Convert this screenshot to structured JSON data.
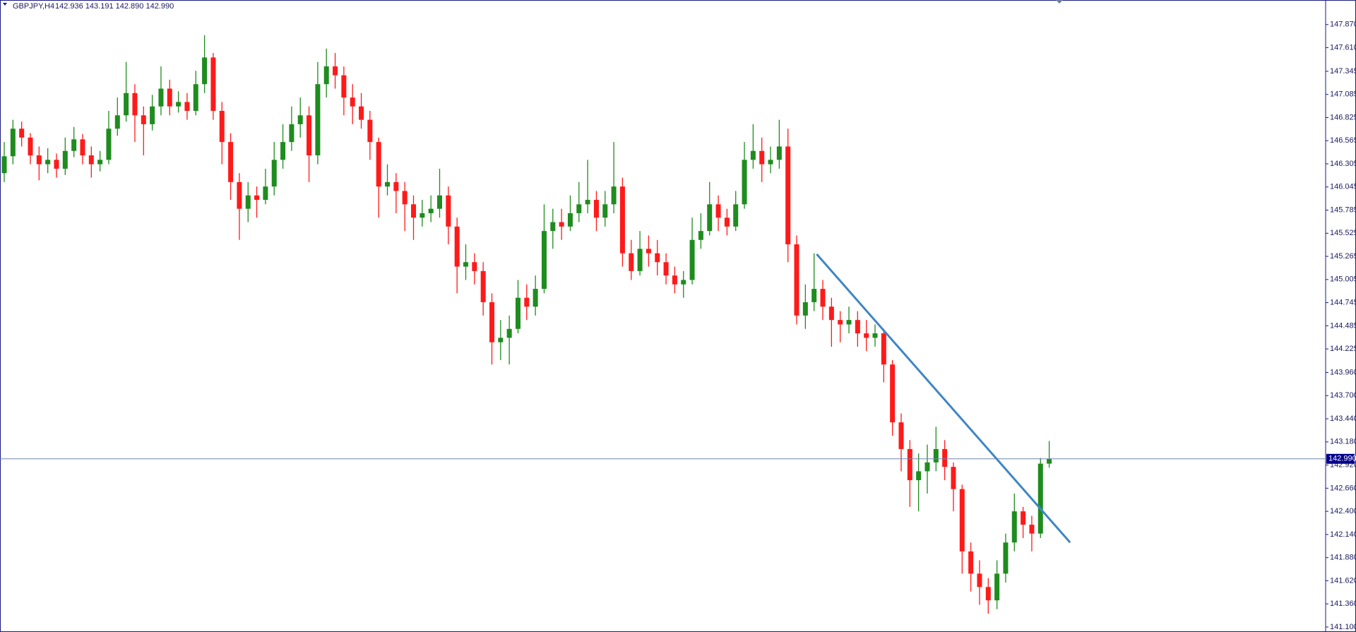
{
  "chart_data": {
    "type": "candlestick",
    "symbol": "GBPJPY,H4",
    "ohlc_label": "142.936 143.191 142.890 142.990",
    "up_color": "#1e8c1e",
    "down_color": "#ff1a1a",
    "grid": false,
    "ylim": [
      141.06,
      148.13
    ],
    "yticks": [
      {
        "value": 147.87,
        "label": "147.870"
      },
      {
        "value": 147.61,
        "label": "147.610"
      },
      {
        "value": 147.345,
        "label": "147.345"
      },
      {
        "value": 147.085,
        "label": "147.085"
      },
      {
        "value": 146.825,
        "label": "146.825"
      },
      {
        "value": 146.565,
        "label": "146.565"
      },
      {
        "value": 146.305,
        "label": "146.305"
      },
      {
        "value": 146.045,
        "label": "146.045"
      },
      {
        "value": 145.785,
        "label": "145.785"
      },
      {
        "value": 145.525,
        "label": "145.525"
      },
      {
        "value": 145.265,
        "label": "145.265"
      },
      {
        "value": 145.005,
        "label": "145.005"
      },
      {
        "value": 144.745,
        "label": "144.745"
      },
      {
        "value": 144.485,
        "label": "144.485"
      },
      {
        "value": 144.225,
        "label": "144.225"
      },
      {
        "value": 143.96,
        "label": "143.960"
      },
      {
        "value": 143.7,
        "label": "143.700"
      },
      {
        "value": 143.44,
        "label": "143.440"
      },
      {
        "value": 143.18,
        "label": "143.180"
      },
      {
        "value": 142.92,
        "label": "142.920"
      },
      {
        "value": 142.66,
        "label": "142.660"
      },
      {
        "value": 142.4,
        "label": "142.400"
      },
      {
        "value": 142.14,
        "label": "142.140"
      },
      {
        "value": 141.88,
        "label": "141.880"
      },
      {
        "value": 141.62,
        "label": "141.620"
      },
      {
        "value": 141.36,
        "label": "141.360"
      },
      {
        "value": 141.1,
        "label": "141.100"
      }
    ],
    "last_price": {
      "value": 142.99,
      "label": "142.990",
      "color": "#00008b"
    },
    "trendline": {
      "x": [
        93.3,
        122.4
      ],
      "y": [
        145.29,
        142.05
      ],
      "color": "#3f86c4"
    },
    "candles": [
      [
        146.2,
        146.55,
        146.1,
        146.39
      ],
      [
        146.39,
        146.8,
        146.3,
        146.7
      ],
      [
        146.7,
        146.78,
        146.5,
        146.6
      ],
      [
        146.6,
        146.65,
        146.3,
        146.4
      ],
      [
        146.4,
        146.5,
        146.12,
        146.3
      ],
      [
        146.3,
        146.48,
        146.2,
        146.35
      ],
      [
        146.35,
        146.42,
        146.15,
        146.25
      ],
      [
        146.25,
        146.6,
        146.18,
        146.45
      ],
      [
        146.45,
        146.72,
        146.38,
        146.58
      ],
      [
        146.58,
        146.64,
        146.3,
        146.4
      ],
      [
        146.4,
        146.5,
        146.15,
        146.3
      ],
      [
        146.3,
        146.45,
        146.22,
        146.35
      ],
      [
        146.35,
        146.9,
        146.3,
        146.7
      ],
      [
        146.7,
        147.05,
        146.62,
        146.85
      ],
      [
        146.85,
        147.45,
        146.78,
        147.1
      ],
      [
        147.1,
        147.2,
        146.55,
        146.85
      ],
      [
        146.85,
        146.95,
        146.4,
        146.75
      ],
      [
        146.75,
        147.08,
        146.68,
        146.95
      ],
      [
        146.95,
        147.4,
        146.85,
        147.15
      ],
      [
        147.15,
        147.25,
        146.85,
        146.95
      ],
      [
        146.95,
        147.12,
        146.88,
        147.0
      ],
      [
        147.0,
        147.1,
        146.8,
        146.9
      ],
      [
        146.9,
        147.35,
        146.85,
        147.2
      ],
      [
        147.2,
        147.75,
        147.1,
        147.5
      ],
      [
        147.5,
        147.55,
        146.8,
        146.9
      ],
      [
        146.9,
        147.0,
        146.3,
        146.55
      ],
      [
        146.55,
        146.65,
        145.9,
        146.1
      ],
      [
        146.1,
        146.2,
        145.45,
        145.8
      ],
      [
        145.8,
        146.1,
        145.65,
        145.95
      ],
      [
        145.95,
        146.05,
        145.7,
        145.9
      ],
      [
        145.9,
        146.25,
        145.85,
        146.05
      ],
      [
        146.05,
        146.55,
        145.95,
        146.35
      ],
      [
        146.35,
        146.75,
        146.25,
        146.55
      ],
      [
        146.55,
        146.95,
        146.45,
        146.75
      ],
      [
        146.75,
        147.05,
        146.6,
        146.85
      ],
      [
        146.85,
        146.95,
        146.1,
        146.4
      ],
      [
        146.4,
        147.45,
        146.3,
        147.2
      ],
      [
        147.2,
        147.6,
        147.05,
        147.4
      ],
      [
        147.4,
        147.55,
        147.15,
        147.3
      ],
      [
        147.3,
        147.4,
        146.85,
        147.05
      ],
      [
        147.05,
        147.2,
        146.75,
        146.95
      ],
      [
        146.95,
        147.1,
        146.7,
        146.8
      ],
      [
        146.8,
        146.9,
        146.35,
        146.55
      ],
      [
        146.55,
        146.6,
        145.7,
        146.05
      ],
      [
        146.05,
        146.3,
        145.95,
        146.1
      ],
      [
        146.1,
        146.2,
        145.75,
        146.0
      ],
      [
        146.0,
        146.1,
        145.55,
        145.85
      ],
      [
        145.85,
        145.95,
        145.45,
        145.7
      ],
      [
        145.7,
        145.9,
        145.6,
        145.75
      ],
      [
        145.75,
        145.95,
        145.65,
        145.8
      ],
      [
        145.8,
        146.25,
        145.7,
        145.95
      ],
      [
        145.95,
        146.05,
        145.4,
        145.6
      ],
      [
        145.6,
        145.7,
        144.85,
        145.15
      ],
      [
        145.15,
        145.4,
        145.0,
        145.2
      ],
      [
        145.2,
        145.3,
        144.95,
        145.1
      ],
      [
        145.1,
        145.2,
        144.6,
        144.75
      ],
      [
        144.75,
        144.85,
        144.05,
        144.3
      ],
      [
        144.3,
        144.55,
        144.1,
        144.35
      ],
      [
        144.35,
        144.6,
        144.05,
        144.45
      ],
      [
        144.45,
        145.0,
        144.4,
        144.8
      ],
      [
        144.8,
        144.95,
        144.55,
        144.7
      ],
      [
        144.7,
        145.05,
        144.6,
        144.9
      ],
      [
        144.9,
        145.85,
        144.85,
        145.55
      ],
      [
        145.55,
        145.8,
        145.35,
        145.65
      ],
      [
        145.65,
        145.8,
        145.45,
        145.6
      ],
      [
        145.6,
        145.95,
        145.55,
        145.75
      ],
      [
        145.75,
        146.1,
        145.65,
        145.85
      ],
      [
        145.85,
        146.35,
        145.75,
        145.9
      ],
      [
        145.9,
        146.0,
        145.55,
        145.7
      ],
      [
        145.7,
        146.0,
        145.6,
        145.85
      ],
      [
        145.85,
        146.55,
        145.75,
        146.05
      ],
      [
        146.05,
        146.15,
        145.15,
        145.3
      ],
      [
        145.3,
        145.45,
        145.0,
        145.1
      ],
      [
        145.1,
        145.55,
        145.05,
        145.35
      ],
      [
        145.35,
        145.5,
        145.15,
        145.3
      ],
      [
        145.3,
        145.45,
        145.05,
        145.2
      ],
      [
        145.2,
        145.3,
        144.95,
        145.05
      ],
      [
        145.05,
        145.15,
        144.85,
        144.95
      ],
      [
        144.95,
        145.1,
        144.8,
        145.0
      ],
      [
        145.0,
        145.7,
        144.95,
        145.45
      ],
      [
        145.45,
        145.75,
        145.35,
        145.55
      ],
      [
        145.55,
        146.1,
        145.5,
        145.85
      ],
      [
        145.85,
        145.95,
        145.55,
        145.7
      ],
      [
        145.7,
        145.8,
        145.5,
        145.6
      ],
      [
        145.6,
        146.0,
        145.55,
        145.85
      ],
      [
        145.85,
        146.55,
        145.8,
        146.35
      ],
      [
        146.35,
        146.75,
        146.25,
        146.45
      ],
      [
        146.45,
        146.6,
        146.1,
        146.3
      ],
      [
        146.3,
        146.5,
        146.2,
        146.35
      ],
      [
        146.35,
        146.8,
        146.25,
        146.5
      ],
      [
        146.5,
        146.7,
        145.2,
        145.4
      ],
      [
        145.4,
        145.5,
        144.5,
        144.6
      ],
      [
        144.6,
        144.95,
        144.45,
        144.75
      ],
      [
        144.75,
        145.3,
        144.65,
        144.9
      ],
      [
        144.9,
        145.0,
        144.55,
        144.7
      ],
      [
        144.7,
        144.8,
        144.25,
        144.55
      ],
      [
        144.55,
        144.65,
        144.3,
        144.5
      ],
      [
        144.5,
        144.7,
        144.4,
        144.55
      ],
      [
        144.55,
        144.65,
        144.25,
        144.4
      ],
      [
        144.4,
        144.55,
        144.2,
        144.35
      ],
      [
        144.35,
        144.5,
        144.25,
        144.4
      ],
      [
        144.4,
        144.45,
        143.85,
        144.05
      ],
      [
        144.05,
        144.1,
        143.25,
        143.4
      ],
      [
        143.4,
        143.5,
        142.85,
        143.1
      ],
      [
        143.1,
        143.2,
        142.45,
        142.75
      ],
      [
        142.75,
        143.05,
        142.4,
        142.85
      ],
      [
        142.85,
        143.15,
        142.6,
        142.95
      ],
      [
        142.95,
        143.35,
        142.85,
        143.1
      ],
      [
        143.1,
        143.2,
        142.75,
        142.9
      ],
      [
        142.9,
        142.95,
        142.4,
        142.65
      ],
      [
        142.65,
        142.7,
        141.7,
        141.95
      ],
      [
        141.95,
        142.05,
        141.5,
        141.7
      ],
      [
        141.7,
        141.85,
        141.35,
        141.55
      ],
      [
        141.55,
        141.65,
        141.25,
        141.4
      ],
      [
        141.4,
        141.85,
        141.3,
        141.7
      ],
      [
        141.7,
        142.15,
        141.6,
        142.05
      ],
      [
        142.05,
        142.6,
        141.95,
        142.4
      ],
      [
        142.4,
        142.45,
        142.1,
        142.25
      ],
      [
        142.25,
        142.35,
        141.95,
        142.15
      ],
      [
        142.15,
        143.0,
        142.1,
        142.936
      ],
      [
        142.936,
        143.191,
        142.89,
        142.99
      ]
    ]
  }
}
